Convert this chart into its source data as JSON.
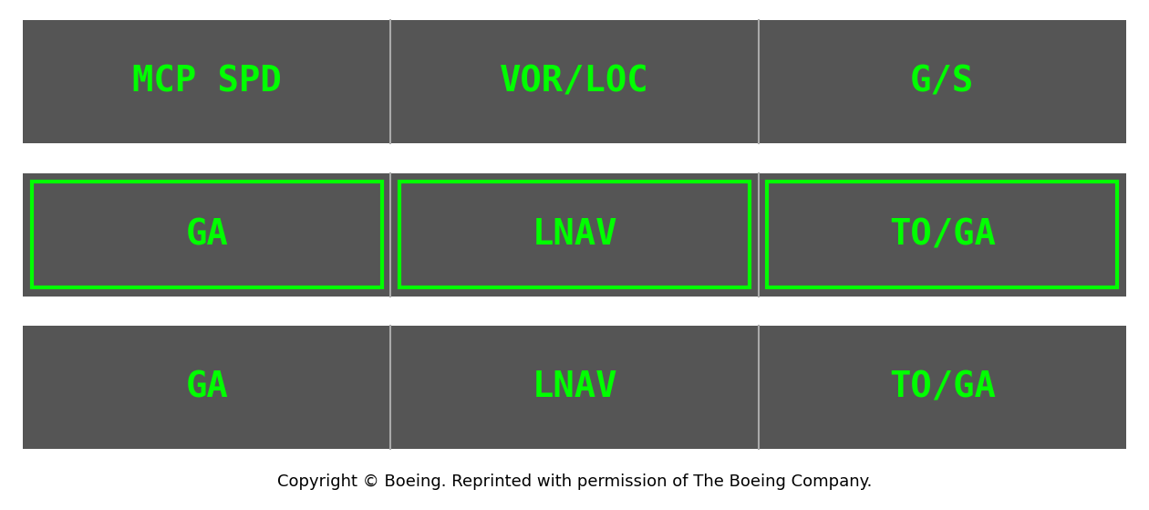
{
  "fig_width": 12.6,
  "fig_height": 5.59,
  "bg_color": "#ffffff",
  "panel_bg": "#555555",
  "black_color": "#000000",
  "green_color": "#00ff00",
  "divider_color": "#aaaaaa",
  "rows": [
    {
      "labels": [
        "MCP SPD",
        "VOR/LOC",
        "G/S"
      ],
      "has_box": false
    },
    {
      "labels": [
        "GA",
        "LNAV",
        "TO/GA"
      ],
      "has_box": true
    },
    {
      "labels": [
        "GA",
        "LNAV",
        "TO/GA"
      ],
      "has_box": false
    }
  ],
  "caption": "Copyright © Boeing. Reprinted with permission of The Boeing Company.",
  "caption_fontsize": 13,
  "label_fontsize": 28,
  "font_family": "monospace"
}
